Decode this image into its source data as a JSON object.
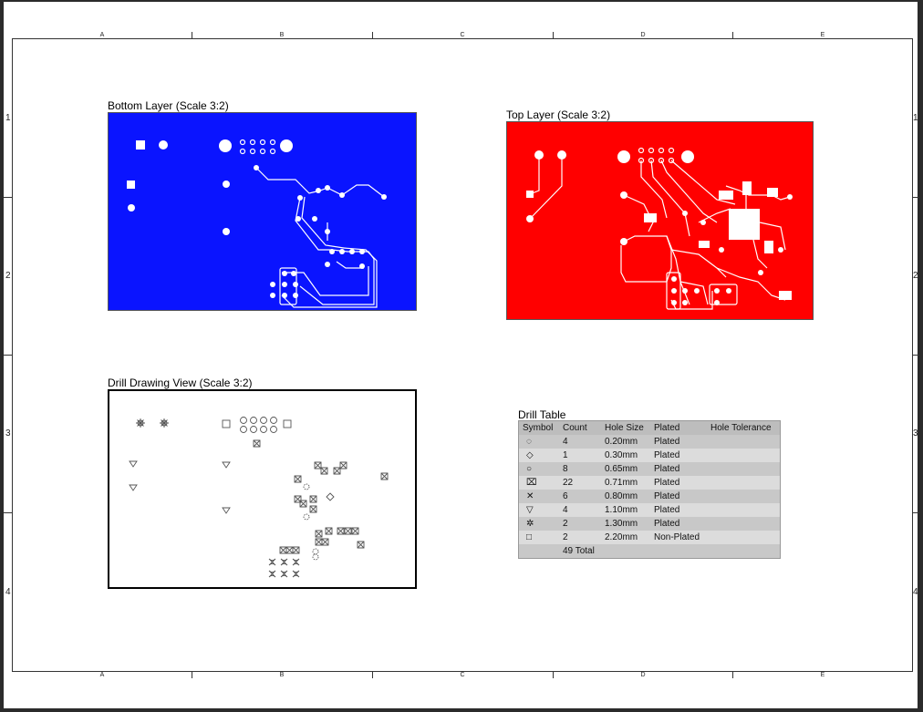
{
  "columns": [
    "A",
    "B",
    "C",
    "D",
    "E"
  ],
  "rows": [
    "1",
    "2",
    "3",
    "4"
  ],
  "views": {
    "bottom_title": "Bottom Layer (Scale 3:2)",
    "top_title": "Top Layer (Scale 3:2)",
    "drill_title": "Drill Drawing View (Scale 3:2)"
  },
  "colors": {
    "bottom_layer": "#0a14ff",
    "top_layer": "#ff0000"
  },
  "drill_table": {
    "title": "Drill Table",
    "headers": [
      "Symbol",
      "Count",
      "Hole Size",
      "Plated",
      "Hole Tolerance"
    ],
    "rows": [
      {
        "symbol": "dashed-circle-icon",
        "glyph": "◌",
        "count": "4",
        "size": "0.20mm",
        "plated": "Plated"
      },
      {
        "symbol": "diamond-icon",
        "glyph": "◇",
        "count": "1",
        "size": "0.30mm",
        "plated": "Plated"
      },
      {
        "symbol": "circle-icon",
        "glyph": "○",
        "count": "8",
        "size": "0.65mm",
        "plated": "Plated"
      },
      {
        "symbol": "boxed-x-icon",
        "glyph": "⌧",
        "count": "22",
        "size": "0.71mm",
        "plated": "Plated"
      },
      {
        "symbol": "star-x-icon",
        "glyph": "✕",
        "count": "6",
        "size": "0.80mm",
        "plated": "Plated"
      },
      {
        "symbol": "triangle-down-icon",
        "glyph": "▽",
        "count": "4",
        "size": "1.10mm",
        "plated": "Plated"
      },
      {
        "symbol": "gear-icon",
        "glyph": "✲",
        "count": "2",
        "size": "1.30mm",
        "plated": "Plated"
      },
      {
        "symbol": "square-icon",
        "glyph": "□",
        "count": "2",
        "size": "2.20mm",
        "plated": "Non-Plated"
      }
    ],
    "total": "49 Total"
  }
}
